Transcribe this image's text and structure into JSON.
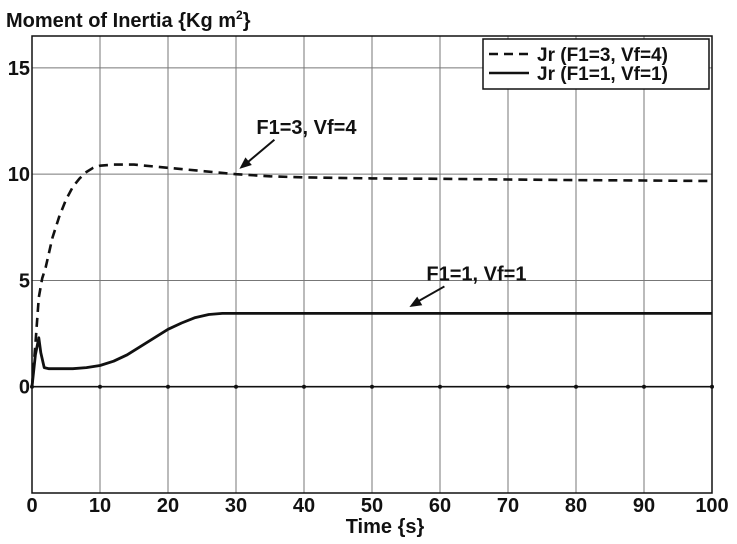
{
  "chart_data": {
    "type": "line",
    "title": "Moment of Inertia {Kg m",
    "title_sup": "2",
    "title_end": "}",
    "xlabel": "Time {s}",
    "ylabel": "",
    "xlim": [
      0,
      100
    ],
    "ylim": [
      -5,
      16.5
    ],
    "x_ticks": [
      "0",
      "10",
      "20",
      "30",
      "40",
      "50",
      "60",
      "70",
      "80",
      "90",
      "100"
    ],
    "y_ticks": [
      "0",
      "5",
      "10",
      "15"
    ],
    "grid": true,
    "legend_position": "top-right",
    "series": [
      {
        "name": "Jr (F1=3, Vf=4)",
        "style": "dashed",
        "x": [
          0,
          0.5,
          1,
          1.5,
          2,
          3,
          4,
          5,
          6,
          7,
          8,
          9,
          10,
          12,
          15,
          20,
          25,
          30,
          35,
          40,
          50,
          60,
          70,
          80,
          90,
          100
        ],
        "y": [
          0,
          2.0,
          4.2,
          5.1,
          5.6,
          7.0,
          8.0,
          8.8,
          9.4,
          9.8,
          10.1,
          10.3,
          10.4,
          10.45,
          10.45,
          10.3,
          10.15,
          10.0,
          9.9,
          9.85,
          9.8,
          9.78,
          9.75,
          9.72,
          9.7,
          9.68
        ]
      },
      {
        "name": "Jr (F1=1, Vf=1)",
        "style": "solid",
        "x": [
          0,
          0.5,
          1,
          1.3,
          1.8,
          2.5,
          4,
          6,
          8,
          10,
          12,
          14,
          16,
          18,
          20,
          22,
          24,
          26,
          28,
          30,
          40,
          50,
          60,
          70,
          80,
          90,
          100
        ],
        "y": [
          0,
          1.5,
          2.3,
          1.6,
          0.9,
          0.85,
          0.85,
          0.85,
          0.9,
          1.0,
          1.2,
          1.5,
          1.9,
          2.3,
          2.7,
          3.0,
          3.25,
          3.4,
          3.45,
          3.45,
          3.45,
          3.45,
          3.45,
          3.45,
          3.45,
          3.45,
          3.45
        ]
      },
      {
        "name": "",
        "style": "solid-thin",
        "x": [
          0,
          100
        ],
        "y": [
          0,
          0
        ]
      }
    ],
    "annotations": [
      {
        "text": "F1=3, Vf=4",
        "x": 33,
        "y": 11.9,
        "arrow_to": [
          30.5,
          10.25
        ]
      },
      {
        "text": "F1=1, Vf=1",
        "x": 58,
        "y": 5.0,
        "arrow_to": [
          55.5,
          3.75
        ]
      }
    ]
  }
}
